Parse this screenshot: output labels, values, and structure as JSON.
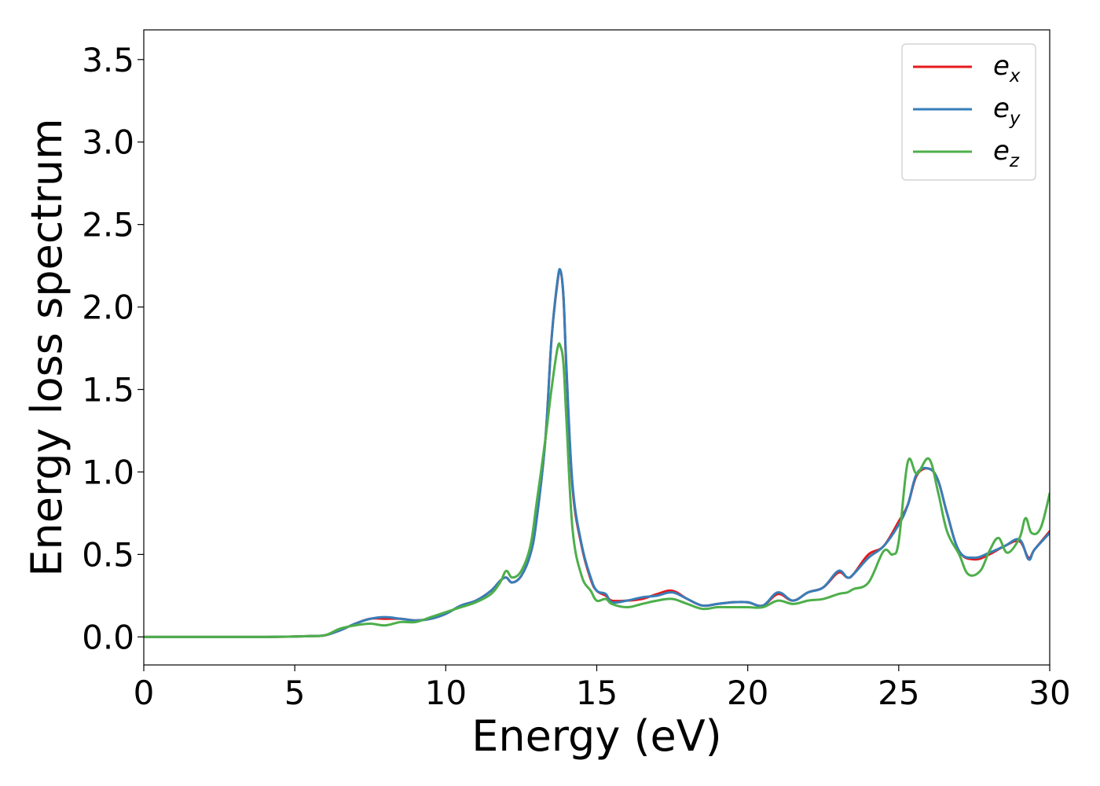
{
  "chart_data": {
    "type": "line",
    "title": "",
    "xlabel": "Energy (eV)",
    "ylabel": "Energy loss spectrum",
    "xlim": [
      0,
      30
    ],
    "ylim": [
      -0.17,
      3.68
    ],
    "xticks": [
      0,
      5,
      10,
      15,
      20,
      25,
      30
    ],
    "xtick_labels": [
      "0",
      "5",
      "10",
      "15",
      "20",
      "25",
      "30"
    ],
    "yticks": [
      0.0,
      0.5,
      1.0,
      1.5,
      2.0,
      2.5,
      3.0,
      3.5
    ],
    "ytick_labels": [
      "0.0",
      "0.5",
      "1.0",
      "1.5",
      "2.0",
      "2.5",
      "3.0",
      "3.5"
    ],
    "grid": false,
    "legend_position": "top-right",
    "series": [
      {
        "name": "e_x",
        "legend_base": "e",
        "legend_sub": "x",
        "color": "#e41a1c",
        "x": [
          0,
          4,
          5.5,
          6.0,
          6.5,
          7.0,
          7.5,
          8.0,
          8.5,
          9.0,
          9.5,
          10.0,
          10.5,
          11.0,
          11.5,
          11.8,
          12.0,
          12.2,
          12.5,
          12.8,
          13.0,
          13.3,
          13.5,
          13.7,
          13.8,
          13.9,
          14.0,
          14.2,
          14.5,
          14.8,
          15.0,
          15.3,
          15.5,
          16.0,
          16.5,
          17.0,
          17.5,
          18.0,
          18.5,
          19.0,
          19.5,
          20.0,
          20.5,
          21.0,
          21.5,
          22.0,
          22.5,
          23.0,
          23.3,
          23.5,
          24.0,
          24.5,
          25.0,
          25.3,
          25.6,
          26.0,
          26.3,
          26.6,
          27.0,
          27.5,
          28.0,
          28.5,
          29.0,
          29.3,
          29.5,
          30.0
        ],
        "y": [
          0.0,
          0.0,
          0.005,
          0.01,
          0.04,
          0.08,
          0.11,
          0.11,
          0.11,
          0.1,
          0.11,
          0.14,
          0.19,
          0.22,
          0.28,
          0.34,
          0.36,
          0.33,
          0.37,
          0.5,
          0.7,
          1.2,
          1.8,
          2.15,
          2.22,
          2.05,
          1.6,
          0.9,
          0.55,
          0.35,
          0.28,
          0.25,
          0.22,
          0.22,
          0.23,
          0.26,
          0.28,
          0.23,
          0.19,
          0.2,
          0.21,
          0.21,
          0.19,
          0.26,
          0.22,
          0.27,
          0.3,
          0.39,
          0.36,
          0.38,
          0.5,
          0.55,
          0.7,
          0.8,
          0.98,
          1.02,
          0.95,
          0.75,
          0.52,
          0.47,
          0.5,
          0.55,
          0.58,
          0.48,
          0.53,
          0.64
        ]
      },
      {
        "name": "e_y",
        "legend_base": "e",
        "legend_sub": "y",
        "color": "#377eb8",
        "x": [
          0,
          4,
          5.5,
          6.0,
          6.5,
          7.0,
          7.5,
          8.0,
          8.5,
          9.0,
          9.5,
          10.0,
          10.5,
          11.0,
          11.5,
          11.8,
          12.0,
          12.2,
          12.5,
          12.8,
          13.0,
          13.3,
          13.5,
          13.7,
          13.8,
          13.9,
          14.0,
          14.2,
          14.5,
          14.8,
          15.0,
          15.3,
          15.5,
          16.0,
          16.5,
          17.0,
          17.5,
          18.0,
          18.5,
          19.0,
          19.5,
          20.0,
          20.5,
          21.0,
          21.5,
          22.0,
          22.5,
          23.0,
          23.3,
          23.5,
          24.0,
          24.5,
          25.0,
          25.3,
          25.6,
          26.0,
          26.3,
          26.6,
          27.0,
          27.5,
          28.0,
          28.5,
          29.0,
          29.3,
          29.5,
          30.0
        ],
        "y": [
          0.0,
          0.0,
          0.005,
          0.01,
          0.04,
          0.08,
          0.11,
          0.12,
          0.11,
          0.1,
          0.11,
          0.14,
          0.19,
          0.22,
          0.28,
          0.34,
          0.36,
          0.33,
          0.37,
          0.5,
          0.7,
          1.2,
          1.8,
          2.16,
          2.22,
          2.06,
          1.62,
          0.92,
          0.56,
          0.36,
          0.28,
          0.26,
          0.21,
          0.22,
          0.24,
          0.25,
          0.27,
          0.23,
          0.19,
          0.2,
          0.21,
          0.21,
          0.19,
          0.27,
          0.22,
          0.27,
          0.3,
          0.4,
          0.36,
          0.38,
          0.48,
          0.55,
          0.68,
          0.8,
          0.99,
          1.02,
          0.95,
          0.75,
          0.52,
          0.48,
          0.51,
          0.55,
          0.59,
          0.47,
          0.53,
          0.63
        ]
      },
      {
        "name": "e_z",
        "legend_base": "e",
        "legend_sub": "z",
        "color": "#4daf4a",
        "x": [
          0,
          4,
          5.5,
          6.0,
          6.5,
          7.0,
          7.5,
          8.0,
          8.5,
          9.0,
          9.5,
          10.0,
          10.5,
          11.0,
          11.5,
          11.8,
          12.0,
          12.2,
          12.5,
          12.8,
          13.0,
          13.3,
          13.5,
          13.7,
          13.8,
          13.9,
          14.0,
          14.2,
          14.5,
          14.8,
          15.0,
          15.3,
          15.5,
          16.0,
          16.5,
          17.0,
          17.5,
          18.0,
          18.5,
          19.0,
          19.5,
          20.0,
          20.5,
          21.0,
          21.5,
          22.0,
          22.5,
          23.0,
          23.3,
          23.5,
          24.0,
          24.5,
          24.8,
          25.0,
          25.3,
          25.6,
          26.0,
          26.3,
          26.6,
          27.0,
          27.3,
          27.7,
          28.0,
          28.3,
          28.6,
          29.0,
          29.2,
          29.4,
          29.7,
          30.0
        ],
        "y": [
          0.0,
          0.0,
          0.005,
          0.01,
          0.05,
          0.07,
          0.08,
          0.07,
          0.09,
          0.09,
          0.12,
          0.15,
          0.18,
          0.21,
          0.26,
          0.33,
          0.4,
          0.36,
          0.4,
          0.55,
          0.8,
          1.2,
          1.5,
          1.75,
          1.76,
          1.65,
          1.3,
          0.65,
          0.37,
          0.28,
          0.22,
          0.23,
          0.2,
          0.18,
          0.2,
          0.22,
          0.23,
          0.2,
          0.17,
          0.18,
          0.18,
          0.18,
          0.18,
          0.22,
          0.2,
          0.22,
          0.23,
          0.26,
          0.27,
          0.29,
          0.33,
          0.52,
          0.5,
          0.58,
          1.06,
          0.99,
          1.08,
          0.88,
          0.64,
          0.5,
          0.38,
          0.4,
          0.52,
          0.6,
          0.51,
          0.6,
          0.72,
          0.63,
          0.66,
          0.87
        ]
      }
    ]
  }
}
